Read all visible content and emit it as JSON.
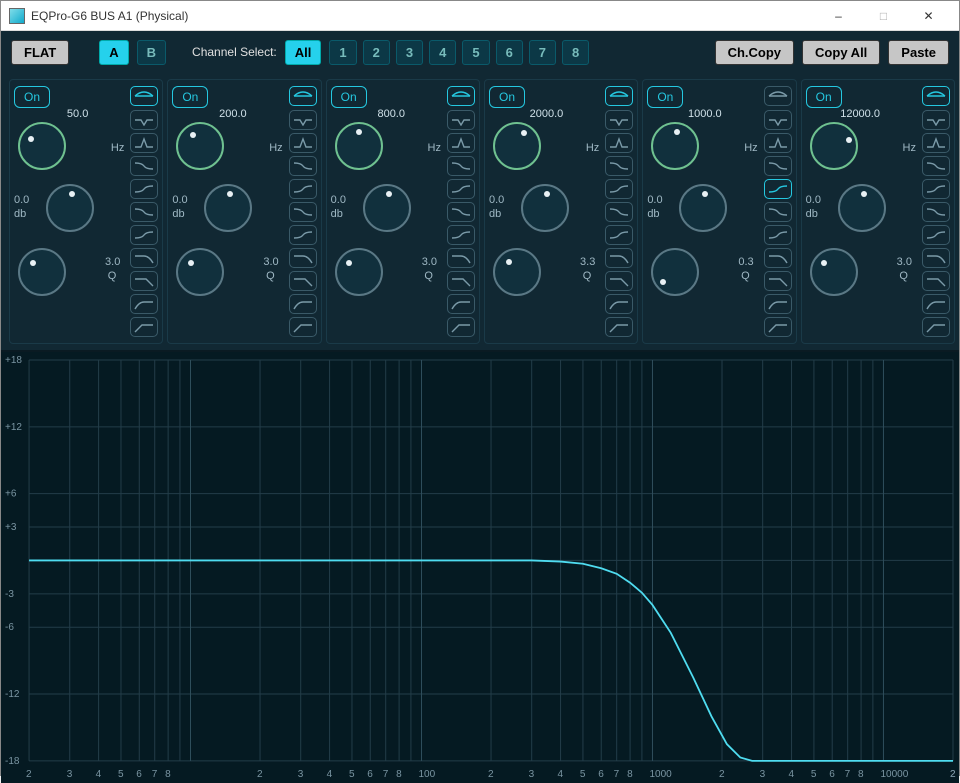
{
  "window": {
    "title": "EQPro-G6 BUS A1 (Physical)"
  },
  "toolbar": {
    "flat": "FLAT",
    "presetA": "A",
    "presetB": "B",
    "channelSelectLabel": "Channel Select:",
    "chAll": "All",
    "channels": [
      "1",
      "2",
      "3",
      "4",
      "5",
      "6",
      "7",
      "8"
    ],
    "chCopy": "Ch.Copy",
    "copyAll": "Copy All",
    "paste": "Paste"
  },
  "colors": {
    "bg": "#112833",
    "panel": "#112833",
    "accent": "#25c8e0",
    "knobRing": "#6fc190",
    "knobRingGray": "#5a7885",
    "grid": "#233d49",
    "curve": "#4fdcf0"
  },
  "bandLabels": {
    "on": "On",
    "hz": "Hz",
    "db": "db",
    "q": "Q"
  },
  "bands": [
    {
      "freq": "50.0",
      "gain": "0.0",
      "q": "3.0",
      "freqAngle": 215,
      "gainAngle": 270,
      "qAngle": 225,
      "activeShape": 0
    },
    {
      "freq": "200.0",
      "gain": "0.0",
      "q": "3.0",
      "freqAngle": 235,
      "gainAngle": 270,
      "qAngle": 225,
      "activeShape": 0
    },
    {
      "freq": "800.0",
      "gain": "0.0",
      "q": "3.0",
      "freqAngle": 265,
      "gainAngle": 270,
      "qAngle": 225,
      "activeShape": 0
    },
    {
      "freq": "2000.0",
      "gain": "0.0",
      "q": "3.3",
      "freqAngle": 290,
      "gainAngle": 270,
      "qAngle": 230,
      "activeShape": 0
    },
    {
      "freq": "1000.0",
      "gain": "0.0",
      "q": "0.3",
      "freqAngle": 270,
      "gainAngle": 270,
      "qAngle": 150,
      "activeShape": 4
    },
    {
      "freq": "12000.0",
      "gain": "0.0",
      "q": "3.0",
      "freqAngle": 330,
      "gainAngle": 270,
      "qAngle": 225,
      "activeShape": 0
    }
  ],
  "shapes": [
    "bell",
    "notch",
    "peak",
    "lowshelf-soft",
    "lowshelf",
    "highshelf-soft",
    "highshelf",
    "lopass-soft",
    "lopass",
    "hipass-soft",
    "hipass"
  ],
  "chart": {
    "type": "line",
    "xscale": "log",
    "xlim": [
      2,
      20000
    ],
    "ylim": [
      -18,
      18
    ],
    "yticks": [
      -18,
      -12,
      -6,
      -3,
      0,
      3,
      6,
      12,
      18
    ],
    "ytick_labels": [
      "-18",
      "-12",
      "-6",
      "-3",
      "",
      "+3",
      "+6",
      "+12",
      "+18"
    ],
    "xticks_major": [
      10,
      100,
      1000,
      10000
    ],
    "xticks_major_labels": [
      "",
      "100",
      "1000",
      "10000"
    ],
    "xticks_minor_labels": {
      "2": "2",
      "3": "3",
      "4": "4",
      "5": "5",
      "6": "6",
      "7": "7",
      "8": "8",
      "20": "2",
      "30": "3",
      "40": "4",
      "50": "5",
      "60": "6",
      "70": "7",
      "80": "8",
      "200": "2",
      "300": "3",
      "400": "4",
      "500": "5",
      "600": "6",
      "700": "7",
      "800": "8",
      "2000": "2",
      "3000": "3",
      "4000": "4",
      "5000": "5",
      "6000": "6",
      "7000": "7",
      "8000": "8",
      "20000": "2"
    },
    "background": "#051a22",
    "grid_color": "#233d49",
    "curve_color": "#4fdcf0",
    "curve": [
      [
        2,
        0
      ],
      [
        100,
        0
      ],
      [
        300,
        0
      ],
      [
        400,
        -0.1
      ],
      [
        500,
        -0.3
      ],
      [
        600,
        -0.7
      ],
      [
        700,
        -1.2
      ],
      [
        800,
        -2.0
      ],
      [
        900,
        -2.9
      ],
      [
        1000,
        -4.0
      ],
      [
        1200,
        -6.5
      ],
      [
        1500,
        -10.5
      ],
      [
        1800,
        -14.0
      ],
      [
        2100,
        -16.5
      ],
      [
        2400,
        -17.7
      ],
      [
        2700,
        -18
      ],
      [
        20000,
        -18
      ]
    ]
  }
}
